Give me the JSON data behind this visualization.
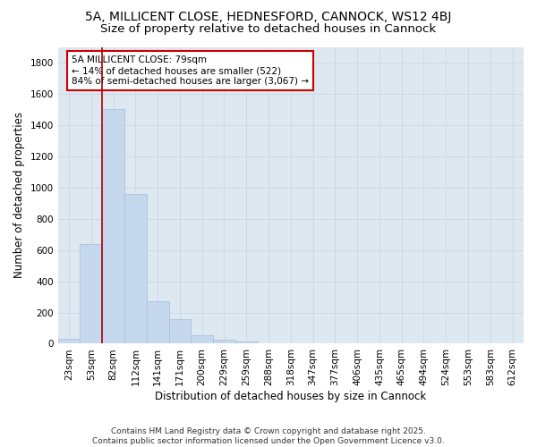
{
  "title1": "5A, MILLICENT CLOSE, HEDNESFORD, CANNOCK, WS12 4BJ",
  "title2": "Size of property relative to detached houses in Cannock",
  "xlabel": "Distribution of detached houses by size in Cannock",
  "ylabel": "Number of detached properties",
  "categories": [
    "23sqm",
    "53sqm",
    "82sqm",
    "112sqm",
    "141sqm",
    "171sqm",
    "200sqm",
    "229sqm",
    "259sqm",
    "288sqm",
    "318sqm",
    "347sqm",
    "377sqm",
    "406sqm",
    "435sqm",
    "465sqm",
    "494sqm",
    "524sqm",
    "553sqm",
    "583sqm",
    "612sqm"
  ],
  "values": [
    30,
    640,
    1500,
    960,
    270,
    155,
    55,
    25,
    12,
    5,
    2,
    2,
    2,
    0,
    0,
    0,
    0,
    0,
    0,
    0,
    0
  ],
  "bar_color": "#c5d8ed",
  "bar_edge_color": "#a8c4db",
  "marker_color": "#aa0000",
  "annotation_text": "5A MILLICENT CLOSE: 79sqm\n← 14% of detached houses are smaller (522)\n84% of semi-detached houses are larger (3,067) →",
  "annotation_box_color": "#ffffff",
  "annotation_box_edge": "#cc0000",
  "ylim": [
    0,
    1900
  ],
  "yticks": [
    0,
    200,
    400,
    600,
    800,
    1000,
    1200,
    1400,
    1600,
    1800
  ],
  "grid_color": "#c8d8e8",
  "bg_color": "#dde8f0",
  "footer": "Contains HM Land Registry data © Crown copyright and database right 2025.\nContains public sector information licensed under the Open Government Licence v3.0.",
  "title_fontsize": 10,
  "subtitle_fontsize": 9.5,
  "axis_label_fontsize": 8.5,
  "tick_fontsize": 7.5,
  "annotation_fontsize": 7.5,
  "footer_fontsize": 6.5
}
